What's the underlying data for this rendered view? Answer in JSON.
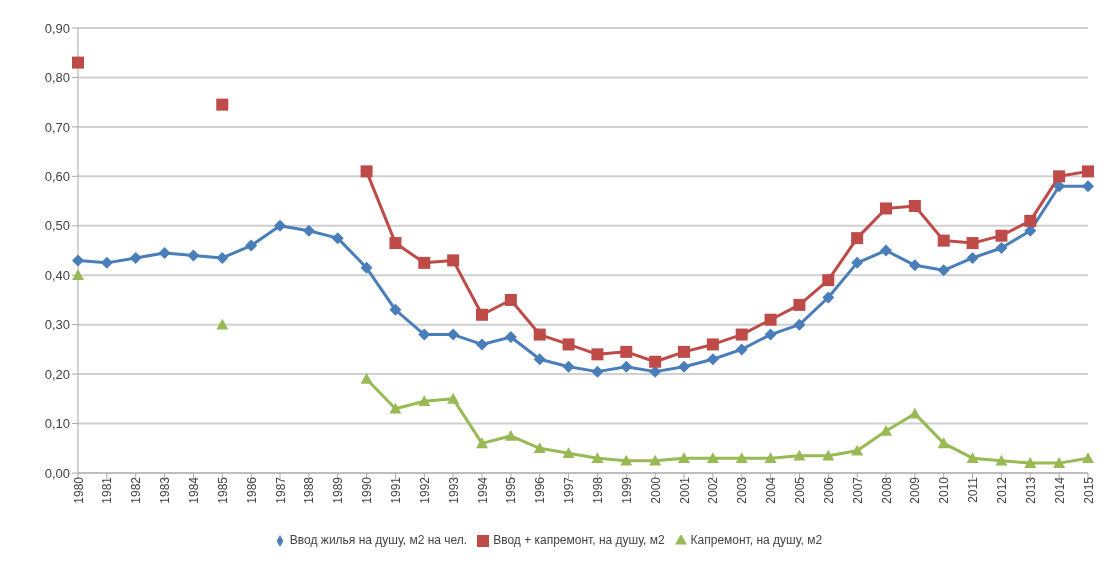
{
  "chart_data": {
    "type": "line",
    "categories": [
      "1980",
      "1981",
      "1982",
      "1983",
      "1984",
      "1985",
      "1986",
      "1987",
      "1988",
      "1989",
      "1990",
      "1991",
      "1992",
      "1993",
      "1994",
      "1995",
      "1996",
      "1997",
      "1998",
      "1999",
      "2000",
      "2001",
      "2002",
      "2003",
      "2004",
      "2005",
      "2006",
      "2007",
      "2008",
      "2009",
      "2010",
      "2011",
      "2012",
      "2013",
      "2014",
      "2015"
    ],
    "series": [
      {
        "name": "Ввод жилья на душу, м2 на чел.",
        "color": "#4a7ebb",
        "marker": "diamond",
        "values": [
          0.43,
          0.425,
          0.435,
          0.445,
          0.44,
          0.435,
          0.46,
          0.5,
          0.49,
          0.475,
          0.415,
          0.33,
          0.28,
          0.28,
          0.26,
          0.275,
          0.23,
          0.215,
          0.205,
          0.215,
          0.205,
          0.215,
          0.23,
          0.25,
          0.28,
          0.3,
          0.355,
          0.425,
          0.45,
          0.42,
          0.41,
          0.435,
          0.455,
          0.49,
          0.58,
          0.58
        ]
      },
      {
        "name": "Ввод + капремонт, на душу, м2",
        "color": "#be4b48",
        "marker": "square",
        "values": [
          0.83,
          null,
          null,
          null,
          null,
          0.745,
          null,
          null,
          null,
          null,
          0.61,
          0.465,
          0.425,
          0.43,
          0.32,
          0.35,
          0.28,
          0.26,
          0.24,
          0.245,
          0.225,
          0.245,
          0.26,
          0.28,
          0.31,
          0.34,
          0.39,
          0.475,
          0.535,
          0.54,
          0.47,
          0.465,
          0.48,
          0.51,
          0.6,
          0.61
        ]
      },
      {
        "name": "Капремонт, на душу, м2",
        "color": "#98b954",
        "marker": "triangle",
        "values": [
          0.4,
          null,
          null,
          null,
          null,
          0.3,
          null,
          null,
          null,
          null,
          0.19,
          0.13,
          0.145,
          0.15,
          0.06,
          0.075,
          0.05,
          0.04,
          0.03,
          0.025,
          0.025,
          0.03,
          0.03,
          0.03,
          0.03,
          0.035,
          0.035,
          0.045,
          0.085,
          0.12,
          0.06,
          0.03,
          0.025,
          0.02,
          0.02,
          0.03
        ]
      }
    ],
    "ylim": [
      0,
      0.9
    ],
    "yticks": [
      {
        "value": 0,
        "label": "0,00"
      },
      {
        "value": 0.1,
        "label": "0,10"
      },
      {
        "value": 0.2,
        "label": "0,20"
      },
      {
        "value": 0.3,
        "label": "0,30"
      },
      {
        "value": 0.4,
        "label": "0,40"
      },
      {
        "value": 0.5,
        "label": "0,50"
      },
      {
        "value": 0.6,
        "label": "0,60"
      },
      {
        "value": 0.7,
        "label": "0,70"
      },
      {
        "value": 0.8,
        "label": "0,80"
      },
      {
        "value": 0.9,
        "label": "0,90"
      }
    ],
    "grid": "y",
    "legend": "bottom",
    "line_style": "solid"
  }
}
